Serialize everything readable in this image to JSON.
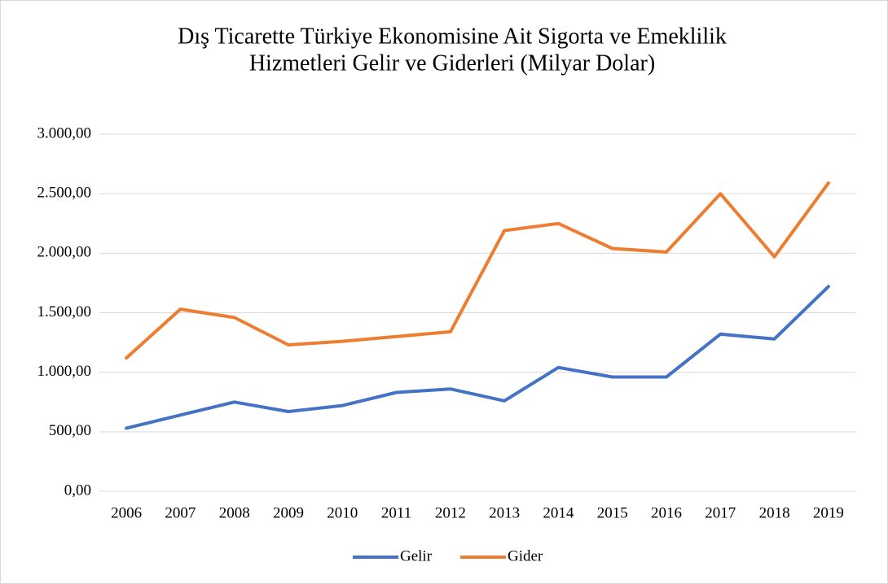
{
  "chart_data": {
    "type": "line",
    "title": [
      "Dış Ticarette Türkiye Ekonomisine Ait Sigorta ve Emeklilik",
      "Hizmetleri Gelir ve Giderleri (Milyar Dolar)"
    ],
    "categories": [
      "2006",
      "2007",
      "2008",
      "2009",
      "2010",
      "2011",
      "2012",
      "2013",
      "2014",
      "2015",
      "2016",
      "2017",
      "2018",
      "2019"
    ],
    "series": [
      {
        "name": "Gelir",
        "color": "#4472c4",
        "values": [
          530,
          640,
          750,
          670,
          720,
          830,
          860,
          760,
          1040,
          960,
          960,
          1320,
          1280,
          1720
        ]
      },
      {
        "name": "Gider",
        "color": "#ed7d31",
        "values": [
          1120,
          1530,
          1460,
          1230,
          1260,
          1300,
          1340,
          2190,
          2250,
          2040,
          2010,
          2500,
          1970,
          2590
        ]
      }
    ],
    "ylim": [
      0,
      3000
    ],
    "yticks": [
      {
        "value": 0,
        "label": "0,00"
      },
      {
        "value": 500,
        "label": "500,00"
      },
      {
        "value": 1000,
        "label": "1.000,00"
      },
      {
        "value": 1500,
        "label": "1.500,00"
      },
      {
        "value": 2000,
        "label": "2.000,00"
      },
      {
        "value": 2500,
        "label": "2.500,00"
      },
      {
        "value": 3000,
        "label": "3.000,00"
      }
    ],
    "grid": true,
    "legend": "bottom"
  }
}
